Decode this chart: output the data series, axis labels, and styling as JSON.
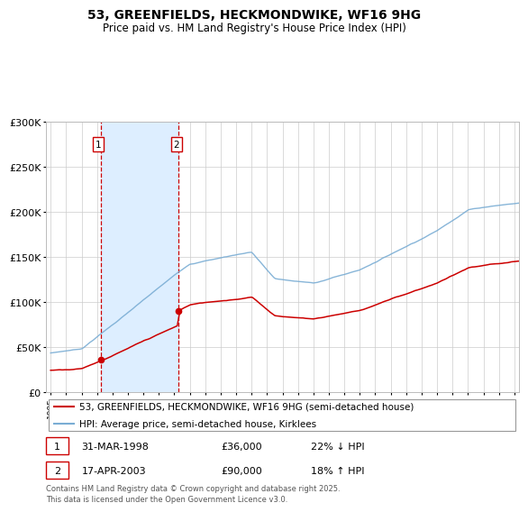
{
  "title": "53, GREENFIELDS, HECKMONDWIKE, WF16 9HG",
  "subtitle": "Price paid vs. HM Land Registry's House Price Index (HPI)",
  "sale1_date": "31-MAR-1998",
  "sale1_price": 36000,
  "sale1_label": "22% ↓ HPI",
  "sale2_date": "17-APR-2003",
  "sale2_price": 90000,
  "sale2_label": "18% ↑ HPI",
  "legend_line1": "53, GREENFIELDS, HECKMONDWIKE, WF16 9HG (semi-detached house)",
  "legend_line2": "HPI: Average price, semi-detached house, Kirklees",
  "footer": "Contains HM Land Registry data © Crown copyright and database right 2025.\nThis data is licensed under the Open Government Licence v3.0.",
  "line_color_red": "#cc0000",
  "line_color_blue": "#7aadd4",
  "shade_color": "#ddeeff",
  "sale1_year": 1998.25,
  "sale2_year": 2003.29,
  "ylim": [
    0,
    300000
  ],
  "xmin": 1995,
  "xmax": 2025
}
